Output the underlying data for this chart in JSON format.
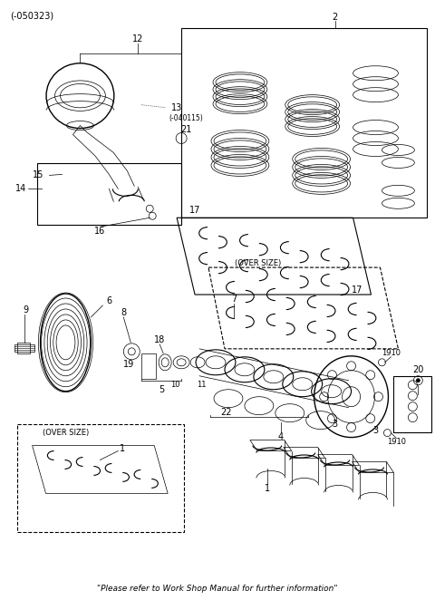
{
  "footer": "\"Please refer to Work Shop Manual for further information\"",
  "top_left_label": "(-050323)",
  "bg_color": "#ffffff",
  "fig_width": 4.8,
  "fig_height": 6.62,
  "dpi": 100
}
